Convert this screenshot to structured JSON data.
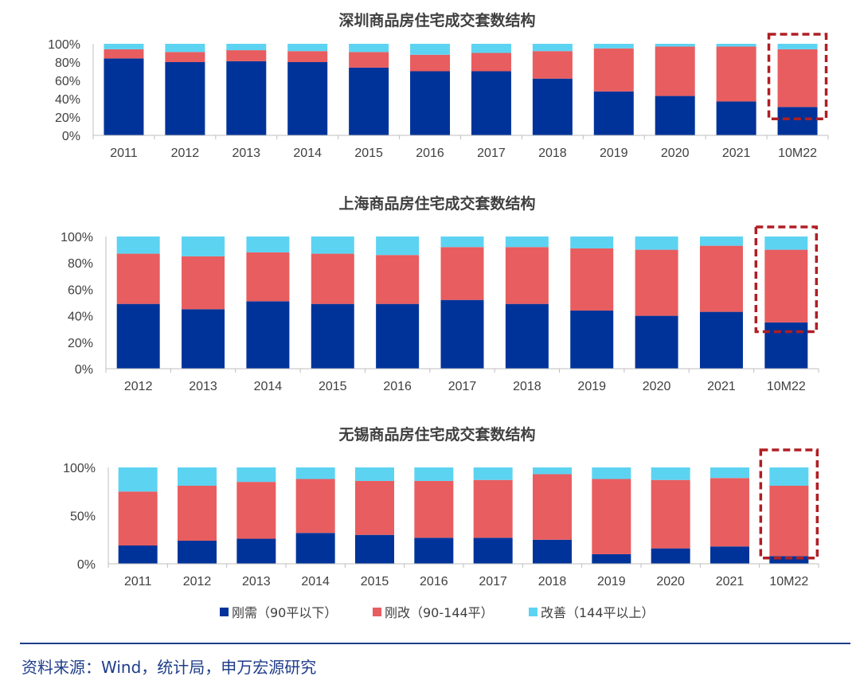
{
  "colors": {
    "gangxu": "#003399",
    "ganggai": "#e85d5f",
    "gaishan": "#5dd3f2",
    "highlight": "#b01e23",
    "source_line": "#1f3d8a",
    "axis": "#bfbfbf",
    "text": "#404040"
  },
  "legend": {
    "items": [
      {
        "label": "刚需（90平以下）",
        "color_key": "gangxu"
      },
      {
        "label": "刚改（90-144平）",
        "color_key": "ganggai"
      },
      {
        "label": "改善（144平以上）",
        "color_key": "gaishan"
      }
    ]
  },
  "source": {
    "text": "资料来源：Wind，统计局，申万宏源研究"
  },
  "chart_data": [
    {
      "type": "bar",
      "stacked": true,
      "title": "深圳商品房住宅成交套数结构",
      "categories": [
        "2011",
        "2012",
        "2013",
        "2014",
        "2015",
        "2016",
        "2017",
        "2018",
        "2019",
        "2020",
        "2021",
        "10M22"
      ],
      "series": [
        {
          "name": "刚需（90平以下）",
          "values": [
            84,
            80,
            81,
            80,
            74,
            70,
            70,
            62,
            48,
            43,
            37,
            31
          ]
        },
        {
          "name": "刚改（90-144平）",
          "values": [
            10,
            11,
            12,
            12,
            17,
            18,
            20,
            30,
            47,
            54,
            60,
            63
          ]
        },
        {
          "name": "改善（144平以上）",
          "values": [
            6,
            9,
            7,
            8,
            9,
            12,
            10,
            8,
            5,
            3,
            3,
            6
          ]
        }
      ],
      "yticks": [
        "0%",
        "20%",
        "40%",
        "60%",
        "80%",
        "100%"
      ],
      "ylim": [
        0,
        100
      ],
      "highlight_category": "10M22"
    },
    {
      "type": "bar",
      "stacked": true,
      "title": "上海商品房住宅成交套数结构",
      "categories": [
        "2012",
        "2013",
        "2014",
        "2015",
        "2016",
        "2017",
        "2018",
        "2019",
        "2020",
        "2021",
        "10M22"
      ],
      "series": [
        {
          "name": "刚需（90平以下）",
          "values": [
            49,
            45,
            51,
            49,
            49,
            52,
            49,
            44,
            40,
            43,
            35
          ]
        },
        {
          "name": "刚改（90-144平）",
          "values": [
            38,
            40,
            37,
            38,
            37,
            40,
            43,
            47,
            50,
            50,
            55
          ]
        },
        {
          "name": "改善（144平以上）",
          "values": [
            13,
            15,
            12,
            13,
            14,
            8,
            8,
            9,
            10,
            7,
            10
          ]
        }
      ],
      "yticks": [
        "0%",
        "20%",
        "40%",
        "60%",
        "80%",
        "100%"
      ],
      "ylim": [
        0,
        100
      ],
      "highlight_category": "10M22"
    },
    {
      "type": "bar",
      "stacked": true,
      "title": "无锡商品房住宅成交套数结构",
      "categories": [
        "2011",
        "2012",
        "2013",
        "2014",
        "2015",
        "2016",
        "2017",
        "2018",
        "2019",
        "2020",
        "2021",
        "10M22"
      ],
      "series": [
        {
          "name": "刚需（90平以下）",
          "values": [
            19,
            24,
            26,
            32,
            30,
            27,
            27,
            25,
            10,
            16,
            18,
            8
          ]
        },
        {
          "name": "刚改（90-144平）",
          "values": [
            56,
            57,
            59,
            56,
            56,
            59,
            60,
            68,
            78,
            71,
            71,
            73
          ]
        },
        {
          "name": "改善（144平以上）",
          "values": [
            25,
            19,
            15,
            12,
            14,
            14,
            13,
            7,
            12,
            13,
            11,
            19
          ]
        }
      ],
      "yticks": [
        "0%",
        "50%",
        "100%"
      ],
      "ylim": [
        0,
        100
      ],
      "highlight_category": "10M22"
    }
  ]
}
